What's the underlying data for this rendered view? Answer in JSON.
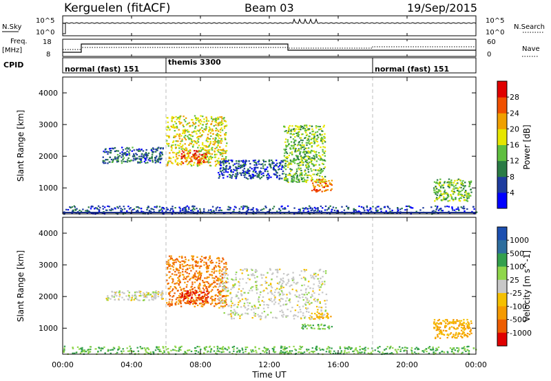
{
  "header": {
    "station": "Kerguelen (fitACF)",
    "beam": "Beam 03",
    "date": "19/Sep/2015"
  },
  "top_panels": {
    "nsky": {
      "label": "N.Sky",
      "left_ticks": [
        "10^5",
        "10^0"
      ],
      "right_ticks": [
        "10^5",
        "10^0"
      ],
      "right_label": "N.Search"
    },
    "freq": {
      "label_line1": "Freq.",
      "label_line2": "[MHz]",
      "left_ticks": [
        "18",
        "8"
      ],
      "right_ticks": [
        "60",
        "0"
      ],
      "right_label": "Nave"
    },
    "cpid": {
      "label": "CPID",
      "modes": [
        {
          "label": "normal (fast) 151",
          "start_hour": 0
        },
        {
          "label": "themis 3300",
          "start_hour": 6
        },
        {
          "label": "normal (fast) 151",
          "start_hour": 18
        }
      ]
    }
  },
  "x_axis": {
    "label": "Time UT",
    "ticks": [
      "00:00",
      "04:00",
      "08:00",
      "12:00",
      "16:00",
      "20:00",
      "00:00"
    ],
    "range_hours": [
      0,
      24
    ]
  },
  "colors": {
    "power_scale": [
      "#0000ff",
      "#1e3c9e",
      "#2a7b45",
      "#5fbf3f",
      "#e6e600",
      "#f0a000",
      "#f05000",
      "#e00000"
    ],
    "velocity_scale": [
      "#1c4fb0",
      "#2e6e9e",
      "#33a04d",
      "#8fd64a",
      "#c8c8c8",
      "#f5c000",
      "#f59a00",
      "#ee5d00",
      "#e00000"
    ]
  },
  "chart_data": [
    {
      "type": "heatmap",
      "title": "",
      "xlabel": "Time UT",
      "ylabel": "Slant Range [km]",
      "xlim_hours": [
        0,
        24
      ],
      "ylim": [
        180,
        4500
      ],
      "yticks": [
        1000,
        2000,
        3000,
        4000
      ],
      "colorbar": {
        "label": "Power [dB]",
        "ticks": [
          "4",
          "8",
          "12",
          "16",
          "20",
          "24",
          "28"
        ],
        "range": [
          0,
          32
        ]
      },
      "features": [
        {
          "t_start": 2.3,
          "t_end": 5.8,
          "range_start": 1800,
          "range_end": 2300,
          "value": 8
        },
        {
          "t_start": 6.0,
          "t_end": 9.5,
          "range_start": 1700,
          "range_end": 3300,
          "value": 18
        },
        {
          "t_start": 6.8,
          "t_end": 8.4,
          "range_start": 1800,
          "range_end": 2200,
          "value": 26
        },
        {
          "t_start": 9.0,
          "t_end": 12.8,
          "range_start": 1300,
          "range_end": 1900,
          "value": 6
        },
        {
          "t_start": 12.8,
          "t_end": 15.2,
          "range_start": 1200,
          "range_end": 3000,
          "value": 14
        },
        {
          "t_start": 14.4,
          "t_end": 15.6,
          "range_start": 900,
          "range_end": 1300,
          "value": 24
        },
        {
          "t_start": 21.5,
          "t_end": 23.7,
          "range_start": 600,
          "range_end": 1300,
          "value": 14
        },
        {
          "t_start": 0,
          "t_end": 24,
          "range_start": 200,
          "range_end": 450,
          "value": 6
        }
      ]
    },
    {
      "type": "heatmap",
      "title": "",
      "xlabel": "Time UT",
      "ylabel": "Slant Range [km]",
      "xlim_hours": [
        0,
        24
      ],
      "ylim": [
        180,
        4500
      ],
      "yticks": [
        1000,
        2000,
        3000,
        4000
      ],
      "colorbar": {
        "label": "Velocity [m s^-1]",
        "ticks": [
          "1000",
          "500",
          "100",
          "25",
          "-25",
          "-100",
          "-500",
          "-1000"
        ],
        "range": [
          -1000,
          1000
        ]
      },
      "features": [
        {
          "t_start": 2.5,
          "t_end": 5.8,
          "range_start": 1900,
          "range_end": 2200,
          "value": 0
        },
        {
          "t_start": 6.0,
          "t_end": 9.5,
          "range_start": 1700,
          "range_end": 3300,
          "value": -500
        },
        {
          "t_start": 6.8,
          "t_end": 8.4,
          "range_start": 1800,
          "range_end": 2200,
          "value": -1000
        },
        {
          "t_start": 9.0,
          "t_end": 15.3,
          "range_start": 1300,
          "range_end": 2900,
          "value": 0
        },
        {
          "t_start": 14.4,
          "t_end": 15.6,
          "range_start": 1300,
          "range_end": 1500,
          "value": -100
        },
        {
          "t_start": 13.8,
          "t_end": 15.6,
          "range_start": 1000,
          "range_end": 1150,
          "value": 100
        },
        {
          "t_start": 21.5,
          "t_end": 23.7,
          "range_start": 700,
          "range_end": 1300,
          "value": -100
        },
        {
          "t_start": 0,
          "t_end": 24,
          "range_start": 200,
          "range_end": 450,
          "value": 100
        }
      ]
    }
  ]
}
